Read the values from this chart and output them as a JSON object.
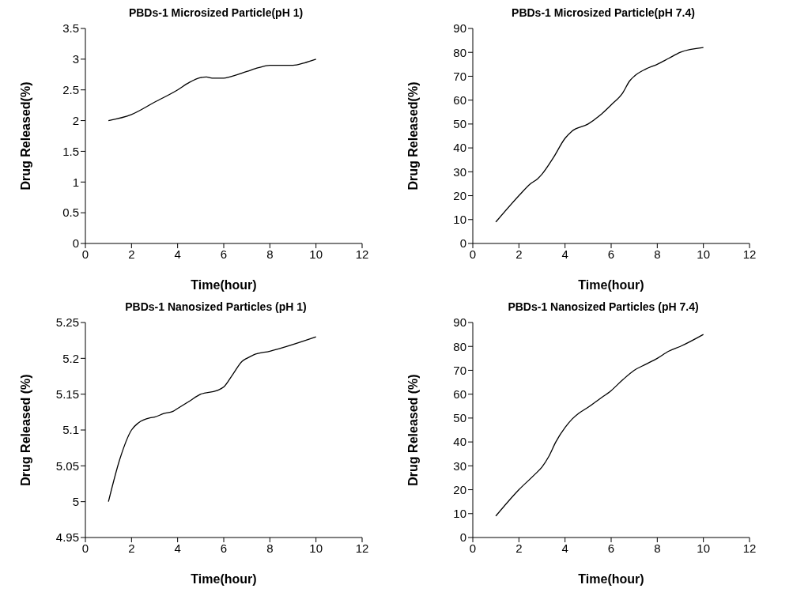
{
  "chart_data": [
    {
      "type": "line",
      "title": "PBDs-1 Microsized Particle(pH 1)",
      "xlabel": "Time(hour)",
      "ylabel": "Drug Released(%)",
      "color": "#000000",
      "x": [
        1,
        2,
        3,
        4,
        4.5,
        5,
        5.25,
        5.5,
        6,
        6.25,
        7,
        7.5,
        8,
        9,
        9.5,
        10
      ],
      "values": [
        2.0,
        2.1,
        2.3,
        2.5,
        2.62,
        2.7,
        2.71,
        2.69,
        2.69,
        2.71,
        2.8,
        2.86,
        2.9,
        2.9,
        2.94,
        3.0
      ],
      "xlim": [
        0,
        12
      ],
      "xticks": [
        0,
        2,
        4,
        6,
        8,
        10,
        12
      ],
      "ylim": [
        0,
        3.5
      ],
      "yticks": [
        0,
        0.5,
        1,
        1.5,
        2,
        2.5,
        3,
        3.5
      ],
      "grid": false,
      "marker": "none"
    },
    {
      "type": "line",
      "title": "PBDs-1 Microsized Particle(pH 7.4)",
      "xlabel": "Time(hour)",
      "ylabel": "Drug Released(%)",
      "color": "#000000",
      "x": [
        1,
        2,
        2.5,
        2.8,
        3,
        3.5,
        4,
        4.3,
        5,
        5.5,
        6,
        6.5,
        6.8,
        7,
        7.5,
        8,
        8.5,
        9,
        10
      ],
      "values": [
        9,
        20,
        25,
        27,
        29,
        36,
        44,
        47,
        50,
        53.5,
        58,
        63,
        68,
        70,
        73,
        75,
        77.5,
        80,
        82
      ],
      "xlim": [
        0,
        12
      ],
      "xticks": [
        0,
        2,
        4,
        6,
        8,
        10,
        12
      ],
      "ylim": [
        0,
        90
      ],
      "yticks": [
        0,
        10,
        20,
        30,
        40,
        50,
        60,
        70,
        80,
        90
      ],
      "grid": false,
      "marker": "none"
    },
    {
      "type": "line",
      "title": "PBDs-1 Nanosized Particles (pH 1)",
      "xlabel": "Time(hour)",
      "ylabel": "Drug Released (%)",
      "color": "#000000",
      "x": [
        1,
        1.5,
        2,
        2.3,
        2.8,
        3,
        3.4,
        3.8,
        4,
        4.5,
        5,
        5.7,
        6,
        6.4,
        6.8,
        7,
        7.3,
        8,
        10
      ],
      "values": [
        5.0,
        5.06,
        5.1,
        5.11,
        5.117,
        5.118,
        5.123,
        5.126,
        5.13,
        5.14,
        5.15,
        5.155,
        5.16,
        5.178,
        5.196,
        5.2,
        5.205,
        5.21,
        5.23
      ],
      "xlim": [
        0,
        12
      ],
      "xticks": [
        0,
        2,
        4,
        6,
        8,
        10,
        12
      ],
      "ylim": [
        4.95,
        5.25
      ],
      "yticks": [
        4.95,
        5,
        5.05,
        5.1,
        5.15,
        5.2,
        5.25
      ],
      "grid": false,
      "marker": "none"
    },
    {
      "type": "line",
      "title": "PBDs-1 Nanosized Particles (pH 7.4)",
      "xlabel": "Time(hour)",
      "ylabel": "Drug Released (%)",
      "color": "#000000",
      "x": [
        1,
        2,
        2.7,
        3,
        3.3,
        3.6,
        4,
        4.3,
        4.6,
        5,
        5.5,
        6,
        6.5,
        7,
        7.5,
        8,
        8.5,
        9,
        10
      ],
      "values": [
        9,
        20,
        26.5,
        29.5,
        34,
        40,
        46,
        49.5,
        52,
        54.5,
        58,
        61.5,
        66,
        70,
        72.5,
        75,
        78,
        80,
        85
      ],
      "xlim": [
        0,
        12
      ],
      "xticks": [
        0,
        2,
        4,
        6,
        8,
        10,
        12
      ],
      "ylim": [
        0,
        90
      ],
      "yticks": [
        0,
        10,
        20,
        30,
        40,
        50,
        60,
        70,
        80,
        90
      ],
      "grid": false,
      "marker": "none"
    }
  ]
}
